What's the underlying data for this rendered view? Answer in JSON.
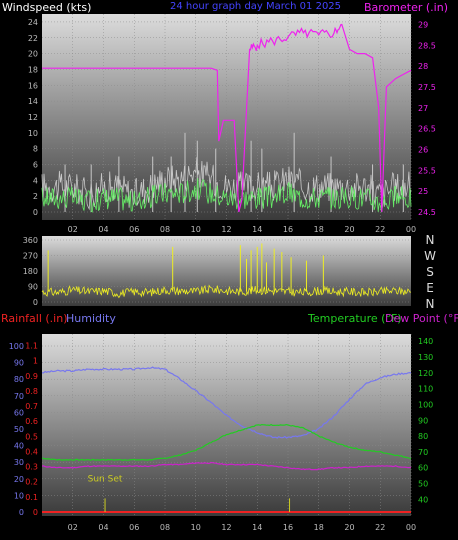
{
  "header": {
    "left_label": "Windspeed (kts)",
    "center_label": "24 hour graph day   March 01 2025",
    "right_label": "Barometer (.in)"
  },
  "lower_header": {
    "rainfall_label": "Rainfall (.in)",
    "humidity_label": "Humidity",
    "temperature_label": "Temperature (°F)",
    "dewpoint_label": "Dew Point (°F)"
  },
  "colors": {
    "wind": "#c8c8c8",
    "gust": "#66ee66",
    "barometer": "#ee22ee",
    "direction": "#eeee22",
    "humidity": "#7777ee",
    "temperature": "#22cc22",
    "dewpoint": "#cc22cc",
    "rain": "#ee2222",
    "sunmark": "#cccc22"
  },
  "chart_data": [
    {
      "type": "line",
      "name": "wind-barometer",
      "x_ticks": [
        "02",
        "04",
        "06",
        "08",
        "10",
        "12",
        "14",
        "16",
        "18",
        "20",
        "22",
        "00"
      ],
      "y_left_ticks": [
        "0",
        "2",
        "4",
        "6",
        "8",
        "10",
        "12",
        "14",
        "16",
        "18",
        "20",
        "22",
        "24"
      ],
      "y_left_range": [
        0,
        25
      ],
      "y_right_ticks": [
        "24.5",
        "25",
        "25.5",
        "26",
        "26.5",
        "27",
        "27.5",
        "28",
        "28.5",
        "29"
      ],
      "y_right_range": [
        24.5,
        29.25
      ],
      "barometer": {
        "x": [
          0,
          1,
          2,
          3,
          4,
          5,
          6,
          7,
          8,
          9,
          10,
          11,
          11.4,
          11.5,
          11.8,
          12.3,
          12.5,
          12.8,
          13.0,
          13.5,
          14,
          15,
          16,
          17,
          18,
          19,
          19.5,
          20,
          20.5,
          21,
          21.5,
          21.9,
          22.1,
          22.4,
          23,
          23.5,
          24
        ],
        "y": [
          27.95,
          27.95,
          27.95,
          27.95,
          27.95,
          27.95,
          27.95,
          27.95,
          27.95,
          27.95,
          27.95,
          27.95,
          27.9,
          26.2,
          26.7,
          26.7,
          26.7,
          24.5,
          24.8,
          28.4,
          28.5,
          28.6,
          28.7,
          28.8,
          28.75,
          28.8,
          29.0,
          28.4,
          28.3,
          28.3,
          28.2,
          27.0,
          24.5,
          27.5,
          27.7,
          27.8,
          27.9
        ]
      },
      "wind": {
        "x": [
          0,
          1,
          2,
          3,
          4,
          5,
          6,
          7,
          8,
          9,
          10,
          11,
          12,
          13,
          14,
          15,
          16,
          17,
          18,
          19,
          20,
          21,
          22,
          23,
          24
        ],
        "y": [
          3,
          3,
          3,
          2,
          3,
          3,
          2,
          3,
          4,
          4,
          5,
          4,
          3,
          3,
          3,
          3,
          4,
          3,
          3,
          3,
          3,
          3,
          2,
          3,
          3
        ]
      },
      "wind_peaks": {
        "x": [
          1.5,
          3.2,
          5.0,
          7.2,
          8.4,
          9.3,
          10.1,
          11.3,
          13.6,
          14.3,
          16.4,
          18.8,
          21.5,
          23.5
        ],
        "y": [
          6,
          6,
          7,
          7,
          7,
          10,
          9,
          8,
          9,
          8,
          10,
          7,
          6,
          6
        ]
      }
    },
    {
      "type": "scatter",
      "name": "wind-direction",
      "y_ticks": [
        "0",
        "90",
        "180",
        "270",
        "360"
      ],
      "y_range": [
        0,
        360
      ],
      "compass": [
        "N",
        "W",
        "S",
        "E",
        "N"
      ],
      "base": {
        "x": [
          0,
          1,
          2,
          3,
          4,
          5,
          6,
          7,
          8,
          9,
          10,
          11,
          12,
          13,
          14,
          15,
          16,
          17,
          18,
          19,
          20,
          21,
          22,
          23,
          24
        ],
        "y": [
          60,
          55,
          70,
          60,
          65,
          50,
          60,
          55,
          70,
          65,
          60,
          75,
          65,
          60,
          70,
          65,
          60,
          55,
          65,
          60,
          60,
          55,
          60,
          65,
          60
        ]
      },
      "spikes": {
        "x": [
          0.4,
          8.5,
          12.9,
          13.3,
          13.6,
          14.0,
          14.3,
          14.6,
          15.1,
          15.6,
          16.2,
          17.2,
          18.3
        ],
        "y": [
          300,
          320,
          330,
          250,
          300,
          320,
          340,
          230,
          310,
          290,
          260,
          240,
          270
        ]
      }
    },
    {
      "type": "line",
      "name": "rain-humidity-temperature",
      "y_left_ticks": [
        "0",
        "10",
        "20",
        "30",
        "40",
        "50",
        "60",
        "70",
        "80",
        "90",
        "100"
      ],
      "y_left_range": [
        0,
        100
      ],
      "y_rain_ticks": [
        "0",
        "0.1",
        "0.2",
        "0.3",
        "0.4",
        "0.5",
        "0.6",
        "0.7",
        "0.8",
        "0.9",
        "1",
        "1.1"
      ],
      "y_rain_range": [
        0,
        1.15
      ],
      "y_right_ticks": [
        "40",
        "50",
        "60",
        "70",
        "80",
        "90",
        "100",
        "110",
        "120",
        "130",
        "140"
      ],
      "y_right_range": [
        32,
        142
      ],
      "humidity": {
        "x": [
          0,
          1,
          2,
          3,
          4,
          5,
          6,
          7,
          8,
          9,
          10,
          11,
          12,
          13,
          14,
          15,
          16,
          17,
          18,
          19,
          20,
          21,
          22,
          23,
          24
        ],
        "y": [
          84,
          85,
          85,
          86,
          86,
          86,
          86,
          87,
          86,
          80,
          73,
          66,
          58,
          52,
          48,
          45,
          45,
          46,
          50,
          58,
          68,
          77,
          81,
          83,
          84
        ]
      },
      "temperature": {
        "x": [
          0,
          1,
          2,
          3,
          4,
          5,
          6,
          7,
          8,
          9,
          10,
          11,
          12,
          13,
          14,
          15,
          16,
          17,
          18,
          19,
          20,
          21,
          22,
          23,
          24
        ],
        "y": [
          66,
          65,
          65,
          65,
          65,
          65,
          65,
          65,
          66,
          68,
          71,
          76,
          81,
          84,
          87,
          87,
          87,
          85,
          80,
          76,
          73,
          71,
          70,
          68,
          66
        ]
      },
      "dewpoint": {
        "x": [
          0,
          1,
          2,
          3,
          4,
          5,
          6,
          7,
          8,
          9,
          10,
          11,
          12,
          13,
          14,
          15,
          16,
          17,
          18,
          19,
          20,
          21,
          22,
          23,
          24
        ],
        "y": [
          61,
          60,
          60,
          61,
          61,
          61,
          61,
          61,
          62,
          62,
          63,
          63,
          62,
          62,
          62,
          61,
          60,
          59,
          59,
          60,
          60,
          61,
          61,
          61,
          60
        ]
      },
      "rain": {
        "x": [
          0,
          24
        ],
        "y": [
          0,
          0
        ]
      },
      "sun_marks": {
        "x": [
          4.1,
          16.1
        ],
        "height": [
          0.09,
          0.09
        ]
      },
      "annotation": "Sun Set"
    }
  ]
}
